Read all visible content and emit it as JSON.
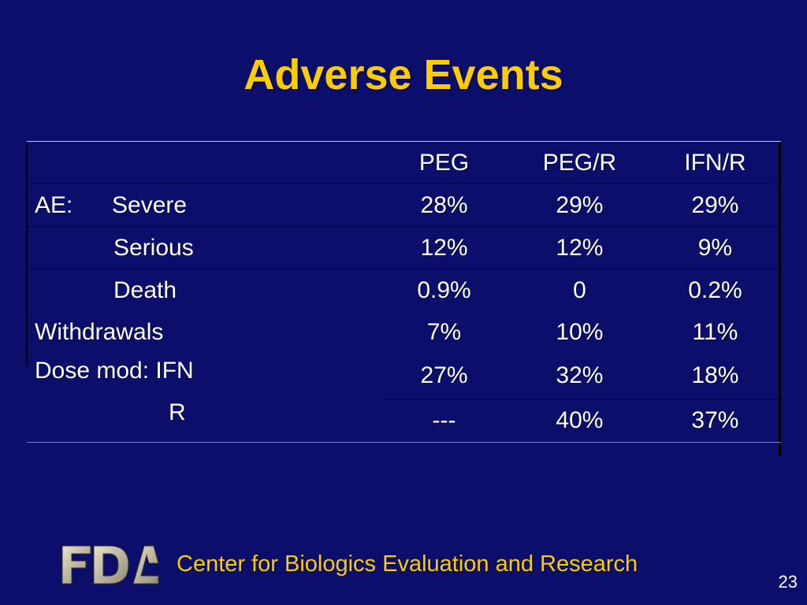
{
  "slide": {
    "title": "Adverse Events",
    "page_number": "23",
    "footer_text": "Center for Biologics Evaluation and Research",
    "logo_text": "FDA"
  },
  "table": {
    "headers": [
      "PEG",
      "PEG/R",
      "IFN/R"
    ],
    "rows": [
      {
        "prefix": "AE:",
        "label": "Severe",
        "values": [
          "28%",
          "29%",
          "29%"
        ]
      },
      {
        "label": "Serious",
        "values": [
          "12%",
          "12%",
          "9%"
        ]
      },
      {
        "label": "Death",
        "values": [
          "0.9%",
          "0",
          "0.2%"
        ]
      },
      {
        "label": "Withdrawals",
        "values": [
          "7%",
          "10%",
          "11%"
        ]
      },
      {
        "label": "Dose mod: IFN",
        "values": [
          "27%",
          "32%",
          "18%"
        ]
      },
      {
        "label": "R",
        "values": [
          "---",
          "40%",
          "37%"
        ]
      }
    ]
  },
  "colors": {
    "background": "#0b0f6b",
    "title": "#ffcc00",
    "text": "#ffffff",
    "footer": "#ffcc00"
  }
}
